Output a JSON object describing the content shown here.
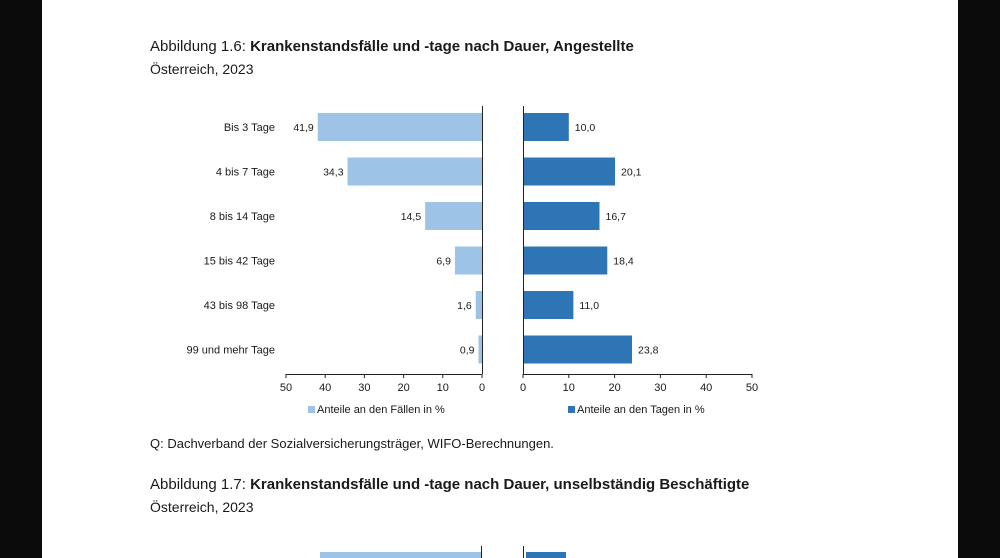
{
  "figure1": {
    "label": "Abbildung 1.6:",
    "title": "Krankenstandsfälle und -tage nach Dauer, Angestellte",
    "subtitle": "Österreich, 2023",
    "source": "Q: Dachverband der Sozialversicherungsträger, WIFO-Berechnungen."
  },
  "figure2": {
    "label": "Abbildung 1.7:",
    "title": "Krankenstandsfälle und -tage nach Dauer, unselbständig Beschäftigte",
    "subtitle": "Österreich, 2023"
  },
  "chart_data": {
    "type": "bar",
    "orientation": "horizontal",
    "categories": [
      "Bis 3 Tage",
      "4 bis 7 Tage",
      "8 bis 14 Tage",
      "15 bis 42 Tage",
      "43 bis 98 Tage",
      "99 und mehr Tage"
    ],
    "series": [
      {
        "name": "Anteile an den Fällen in %",
        "values": [
          41.9,
          34.3,
          14.5,
          6.9,
          1.6,
          0.9
        ],
        "labels": [
          "41,9",
          "34,3",
          "14,5",
          "6,9",
          "1,6",
          "0,9"
        ],
        "color": "#9dc3e6",
        "xlim": [
          50,
          0
        ]
      },
      {
        "name": "Anteile an den Tagen in %",
        "values": [
          10.0,
          20.1,
          16.7,
          18.4,
          11.0,
          23.8
        ],
        "labels": [
          "10,0",
          "20,1",
          "16,7",
          "18,4",
          "11,0",
          "23,8"
        ],
        "color": "#2e75b6",
        "xlim": [
          0,
          50
        ]
      }
    ],
    "left_ticks": [
      "50",
      "40",
      "30",
      "20",
      "10",
      "0"
    ],
    "right_ticks": [
      "0",
      "10",
      "20",
      "30",
      "40",
      "50"
    ],
    "legend": "bottom"
  }
}
